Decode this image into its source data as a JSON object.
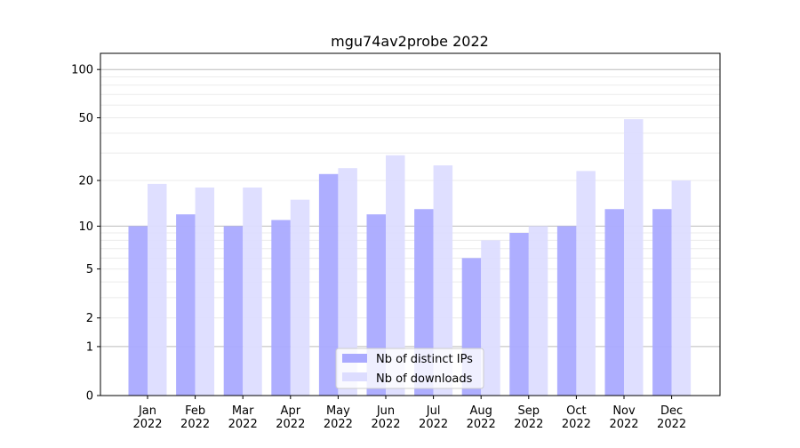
{
  "chart_data": {
    "type": "bar",
    "title": "mgu74av2probe 2022",
    "xlabel": "",
    "ylabel": "",
    "yscale": "log(1+y)",
    "ylim": [
      0,
      126
    ],
    "yticks": [
      0,
      1,
      2,
      5,
      10,
      20,
      50,
      100
    ],
    "ytick_labels": [
      "0",
      "1",
      "2",
      "5",
      "10",
      "20",
      "50",
      "100"
    ],
    "grid": true,
    "legend_position": "bottom-center",
    "categories": [
      "Jan\n2022",
      "Feb\n2022",
      "Mar\n2022",
      "Apr\n2022",
      "May\n2022",
      "Jun\n2022",
      "Jul\n2022",
      "Aug\n2022",
      "Sep\n2022",
      "Oct\n2022",
      "Nov\n2022",
      "Dec\n2022"
    ],
    "series": [
      {
        "name": "Nb of distinct IPs",
        "color": "#aaaaff",
        "values": [
          10,
          12,
          10,
          11,
          22,
          12,
          13,
          6,
          9,
          10,
          13,
          13
        ]
      },
      {
        "name": "Nb of downloads",
        "color": "#ddddff",
        "values": [
          19,
          18,
          18,
          15,
          24,
          29,
          25,
          8,
          10,
          23,
          49,
          20
        ]
      }
    ]
  }
}
